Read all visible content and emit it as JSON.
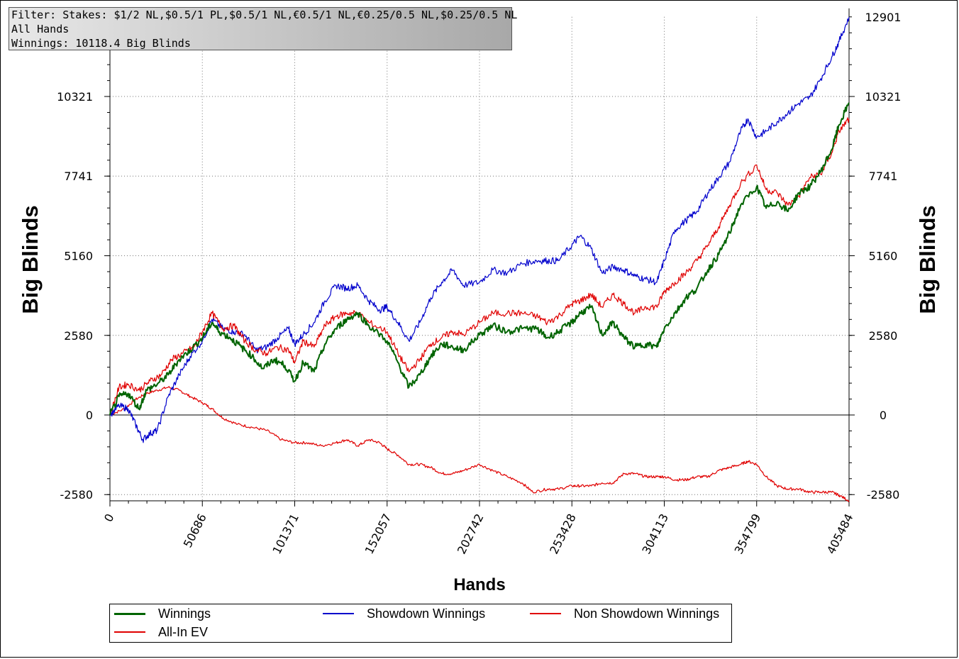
{
  "filter_box": {
    "line1": "Filter: Stakes: $1/2 NL,$0.5/1 PL,$0.5/1 NL,€0.5/1 NL,€0.25/0.5 NL,$0.25/0.5 NL",
    "line2": "All Hands",
    "line3": "Winnings: 10118.4 Big Blinds"
  },
  "colors": {
    "winnings": "#006400",
    "showdown": "#0000cc",
    "non_showdown": "#e00000",
    "allin_ev": "#e00000"
  },
  "chart_data": {
    "type": "line",
    "xlabel": "Hands",
    "ylabel_left": "Big Blinds",
    "ylabel_right": "Big Blinds",
    "xlim": [
      0,
      405484
    ],
    "ylim": [
      -2780,
      12901
    ],
    "x_ticks": [
      "0",
      "50686",
      "101371",
      "152057",
      "202742",
      "253428",
      "304113",
      "354799",
      "405484"
    ],
    "y_ticks_left": [
      "10321",
      "7741",
      "5160",
      "2580",
      "0",
      "-2580"
    ],
    "y_ticks_right": [
      "12901",
      "10321",
      "7741",
      "5160",
      "2580",
      "0",
      "-2580"
    ],
    "grid": true,
    "legend_position": "bottom",
    "series": [
      {
        "name": "Winnings",
        "x": [
          0,
          5000,
          10000,
          16000,
          20000,
          26000,
          32000,
          38000,
          44000,
          50686,
          56000,
          60000,
          66000,
          72000,
          78000,
          84000,
          90000,
          96000,
          101371,
          106000,
          112000,
          118000,
          124000,
          130000,
          136000,
          142000,
          152057,
          158000,
          164000,
          170000,
          176000,
          182000,
          188000,
          194000,
          202742,
          210000,
          218000,
          226000,
          234000,
          240000,
          246000,
          253428,
          258000,
          264000,
          270000,
          276000,
          282000,
          288000,
          294000,
          300000,
          304113,
          310000,
          316000,
          322000,
          328000,
          334000,
          340000,
          346000,
          354799,
          360000,
          366000,
          372000,
          378000,
          384000,
          390000,
          396000,
          400000,
          405484
        ],
        "y": [
          0,
          600,
          700,
          200,
          800,
          1000,
          1300,
          1800,
          2100,
          2500,
          3000,
          2700,
          2500,
          2200,
          1900,
          1500,
          1800,
          1600,
          1100,
          1700,
          1400,
          2300,
          2800,
          3100,
          3300,
          2900,
          2400,
          1700,
          900,
          1300,
          1900,
          2300,
          2200,
          2100,
          2600,
          2900,
          2700,
          2800,
          2800,
          2500,
          2700,
          3000,
          3300,
          3500,
          2600,
          3000,
          2500,
          2200,
          2300,
          2200,
          2800,
          3300,
          3800,
          4100,
          4700,
          5200,
          5900,
          6800,
          7400,
          6700,
          6900,
          6600,
          7200,
          7400,
          7900,
          8600,
          9400,
          10118
        ]
      },
      {
        "name": "Showdown Winnings",
        "x": [
          0,
          5000,
          10000,
          14000,
          18000,
          22000,
          26000,
          32000,
          38000,
          44000,
          50686,
          56000,
          62000,
          68000,
          74000,
          80000,
          86000,
          92000,
          98000,
          101371,
          106000,
          112000,
          118000,
          124000,
          130000,
          136000,
          142000,
          148000,
          152057,
          158000,
          164000,
          170000,
          176000,
          182000,
          188000,
          194000,
          202742,
          210000,
          218000,
          226000,
          234000,
          240000,
          246000,
          253428,
          258000,
          264000,
          270000,
          276000,
          282000,
          288000,
          294000,
          300000,
          304113,
          310000,
          316000,
          322000,
          328000,
          334000,
          340000,
          346000,
          350000,
          354799,
          360000,
          366000,
          372000,
          378000,
          384000,
          390000,
          396000,
          400000,
          405484
        ],
        "y": [
          0,
          300,
          200,
          -300,
          -800,
          -600,
          -500,
          600,
          1300,
          1900,
          2400,
          3100,
          2800,
          2700,
          2600,
          2100,
          2200,
          2500,
          2800,
          2300,
          2600,
          3000,
          3700,
          4200,
          4100,
          4200,
          3700,
          3400,
          3500,
          3000,
          2400,
          3000,
          3800,
          4300,
          4700,
          4200,
          4300,
          4700,
          4600,
          4900,
          5000,
          5000,
          5000,
          5500,
          5800,
          5400,
          4600,
          4800,
          4700,
          4500,
          4400,
          4300,
          5000,
          6000,
          6300,
          6600,
          7200,
          7700,
          8200,
          9200,
          9600,
          9000,
          9200,
          9500,
          9800,
          10100,
          10300,
          10900,
          11600,
          12100,
          12901
        ]
      },
      {
        "name": "Non Showdown Winnings",
        "x": [
          0,
          5000,
          10000,
          16000,
          22000,
          28000,
          34000,
          40000,
          46000,
          50686,
          56000,
          62000,
          68000,
          74000,
          80000,
          86000,
          92000,
          98000,
          101371,
          106000,
          112000,
          118000,
          124000,
          130000,
          136000,
          142000,
          152057,
          158000,
          164000,
          170000,
          176000,
          182000,
          188000,
          194000,
          202742,
          210000,
          218000,
          226000,
          234000,
          240000,
          246000,
          253428,
          258000,
          264000,
          270000,
          276000,
          282000,
          288000,
          294000,
          300000,
          304113,
          310000,
          316000,
          322000,
          328000,
          334000,
          340000,
          346000,
          354799,
          360000,
          366000,
          372000,
          378000,
          384000,
          390000,
          396000,
          400000,
          405484
        ],
        "y": [
          0,
          900,
          1000,
          800,
          1100,
          1300,
          1800,
          2000,
          2200,
          2700,
          3300,
          2800,
          2900,
          2400,
          2100,
          2000,
          2200,
          2100,
          1700,
          2400,
          2200,
          2900,
          3200,
          3300,
          3300,
          3000,
          2700,
          2000,
          1400,
          1800,
          2300,
          2500,
          2700,
          2600,
          3000,
          3300,
          3300,
          3300,
          3200,
          3000,
          3200,
          3600,
          3700,
          3900,
          3500,
          3900,
          3600,
          3300,
          3500,
          3500,
          4000,
          4300,
          4600,
          5000,
          5500,
          6100,
          6800,
          7500,
          8100,
          7300,
          7200,
          6800,
          7100,
          7700,
          7800,
          8500,
          9200,
          9600
        ]
      },
      {
        "name": "All-In EV",
        "x": [
          0,
          8000,
          14000,
          20000,
          26000,
          32000,
          38000,
          44000,
          50686,
          56000,
          62000,
          70000,
          78000,
          86000,
          94000,
          101371,
          108000,
          116000,
          124000,
          130000,
          136000,
          142000,
          148000,
          152057,
          158000,
          164000,
          170000,
          176000,
          182000,
          188000,
          194000,
          202742,
          210000,
          218000,
          226000,
          232000,
          240000,
          246000,
          253428,
          258000,
          264000,
          270000,
          276000,
          282000,
          288000,
          294000,
          300000,
          304113,
          310000,
          316000,
          322000,
          328000,
          334000,
          340000,
          346000,
          350000,
          354799,
          360000,
          366000,
          372000,
          378000,
          384000,
          390000,
          396000,
          400000,
          405484
        ],
        "y": [
          0,
          200,
          500,
          700,
          800,
          900,
          800,
          600,
          400,
          200,
          -100,
          -300,
          -400,
          -500,
          -800,
          -900,
          -900,
          -1000,
          -900,
          -800,
          -1000,
          -800,
          -900,
          -1100,
          -1300,
          -1600,
          -1600,
          -1700,
          -1900,
          -1900,
          -1800,
          -1600,
          -1800,
          -2000,
          -2200,
          -2500,
          -2400,
          -2400,
          -2300,
          -2300,
          -2300,
          -2200,
          -2200,
          -1900,
          -1900,
          -2000,
          -2000,
          -2000,
          -2100,
          -2100,
          -2000,
          -2000,
          -1800,
          -1700,
          -1600,
          -1500,
          -1600,
          -2000,
          -2300,
          -2400,
          -2400,
          -2500,
          -2500,
          -2500,
          -2600,
          -2780
        ]
      }
    ]
  }
}
